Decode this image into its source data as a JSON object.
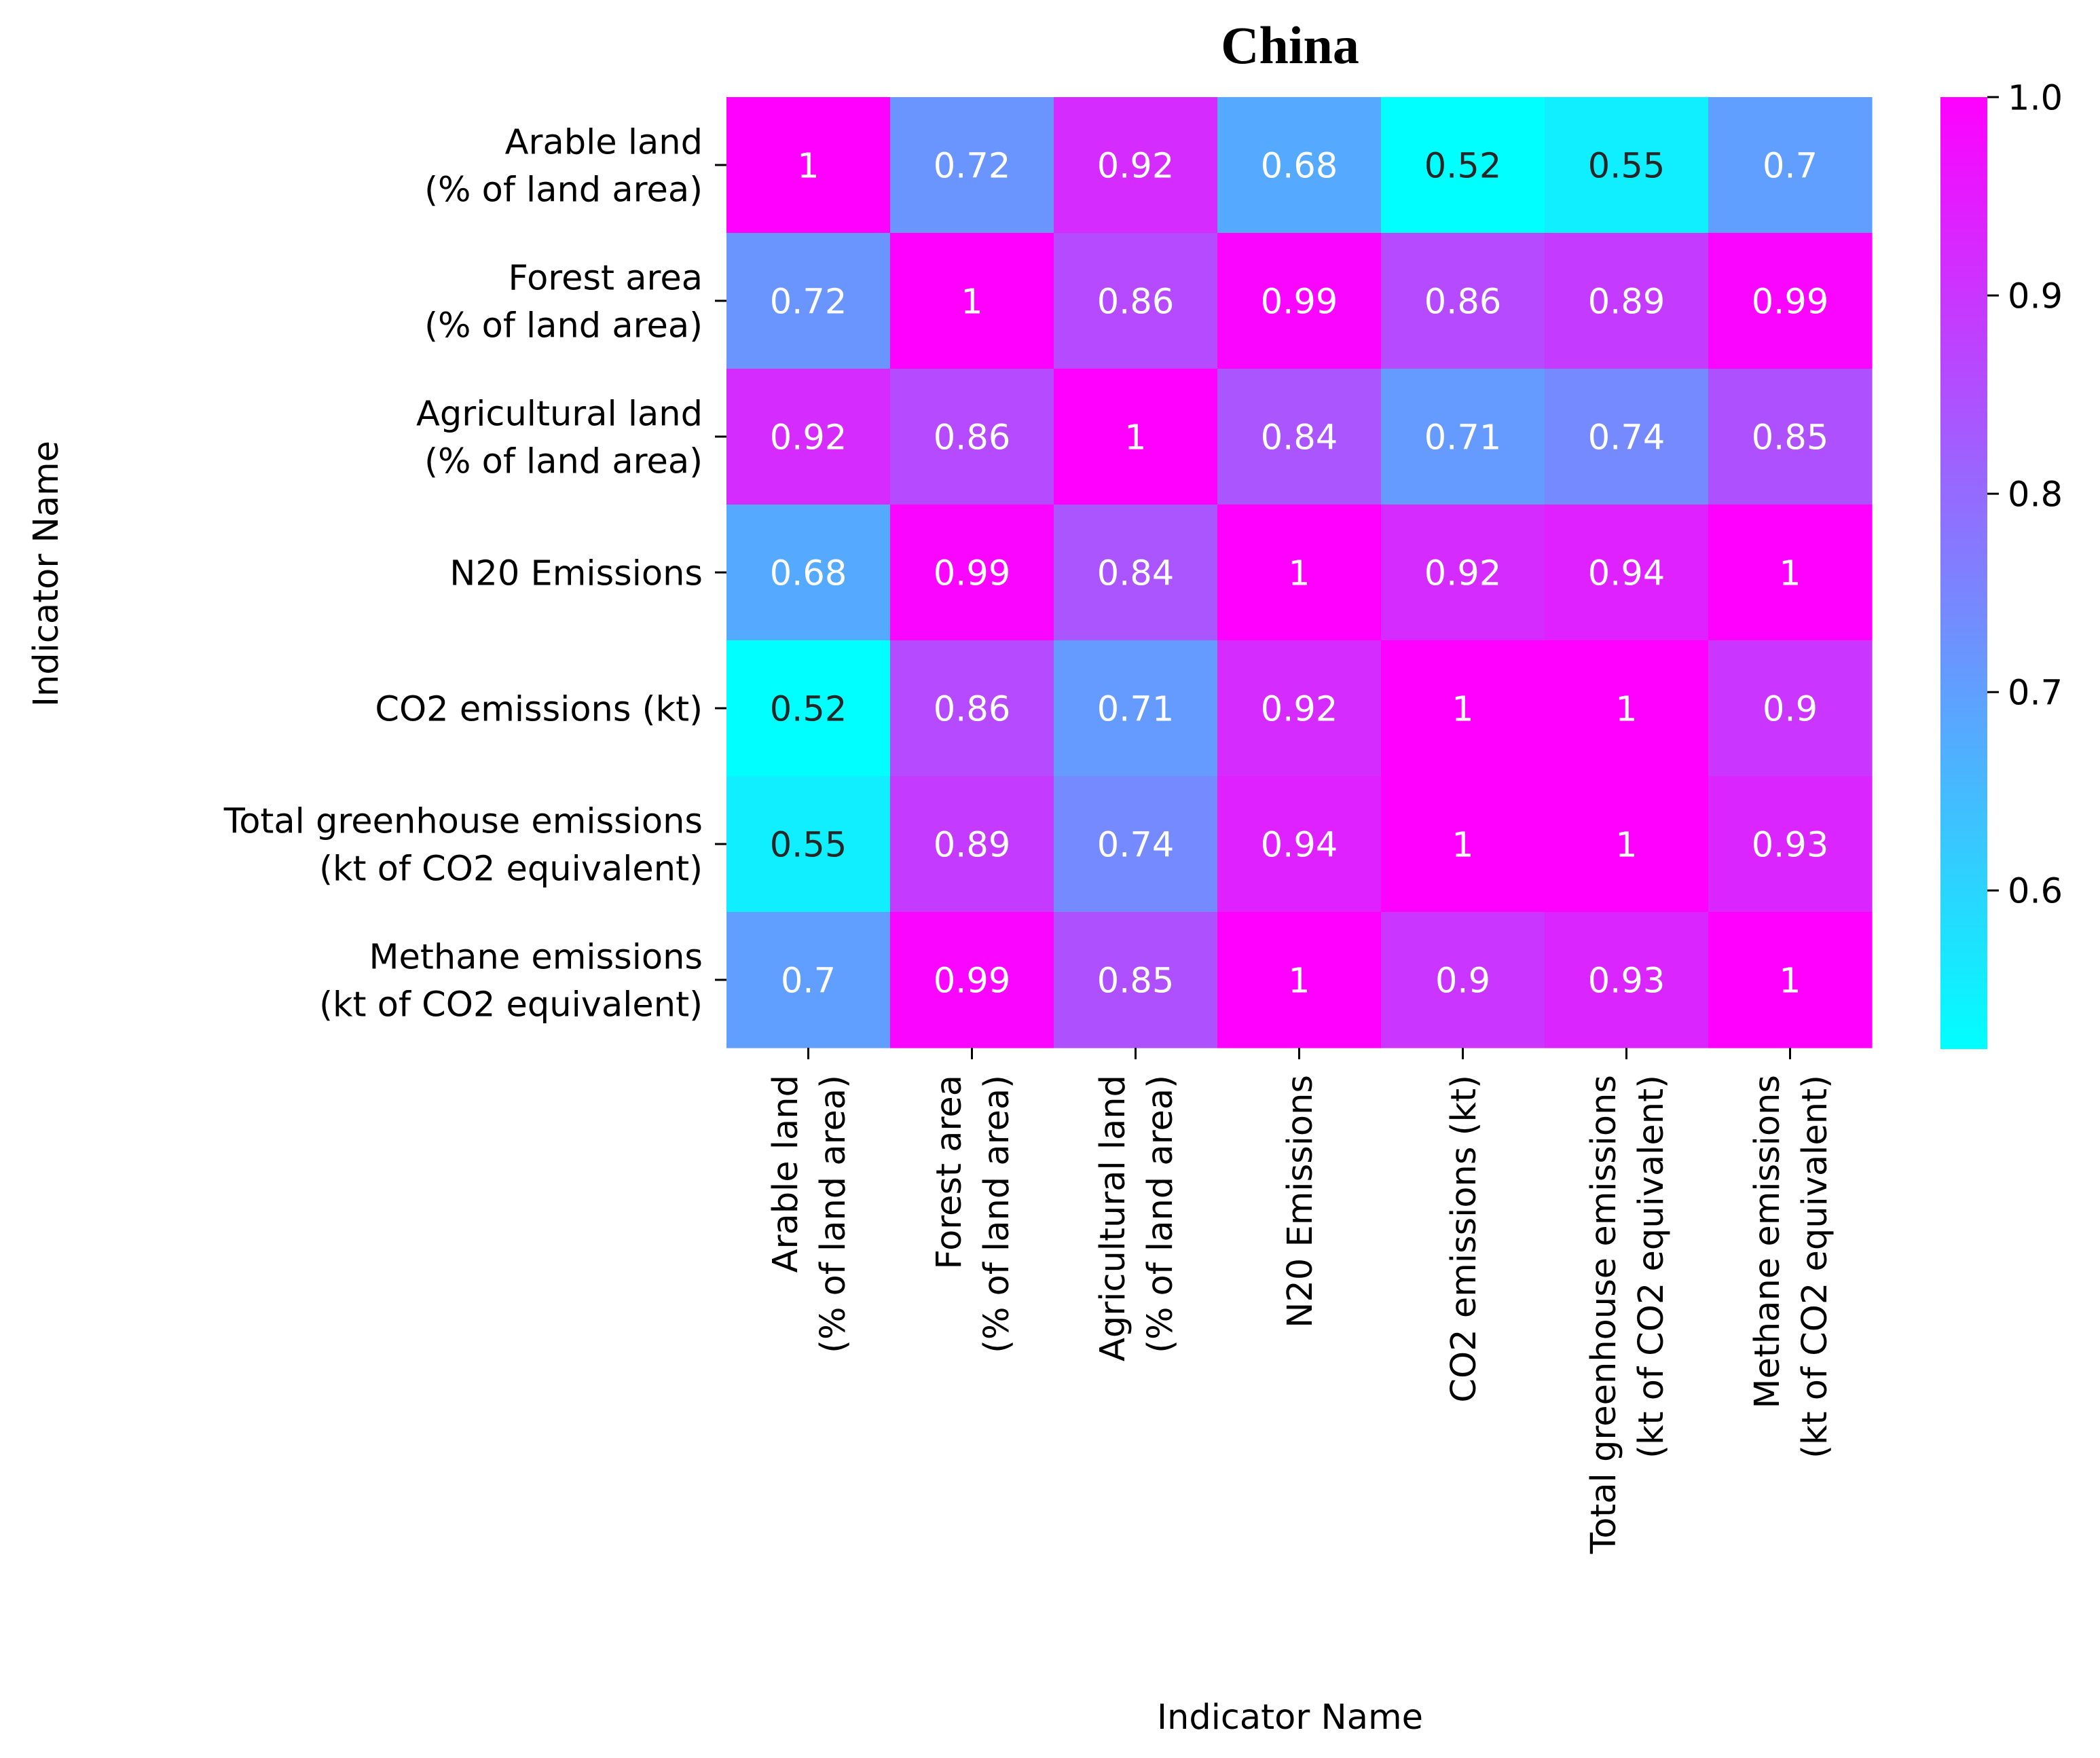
{
  "chart_data": {
    "type": "heatmap",
    "title": "China",
    "xlabel": "Indicator Name",
    "ylabel": "Indicator Name",
    "rows": [
      [
        "Arable land",
        "(% of land area)"
      ],
      [
        "Forest area",
        "(% of land area)"
      ],
      [
        "Agricultural land",
        "(% of land area)"
      ],
      [
        "N20 Emissions"
      ],
      [
        "CO2 emissions (kt)"
      ],
      [
        "Total greenhouse emissions",
        "(kt of CO2 equivalent)"
      ],
      [
        "Methane emissions",
        "(kt of CO2 equivalent)"
      ]
    ],
    "columns": [
      [
        "Arable land",
        "(% of land area)"
      ],
      [
        "Forest area",
        "(% of land area)"
      ],
      [
        "Agricultural land",
        "(% of land area)"
      ],
      [
        "N20 Emissions"
      ],
      [
        "CO2 emissions (kt)"
      ],
      [
        "Total greenhouse emissions",
        "(kt of CO2 equivalent)"
      ],
      [
        "Methane emissions",
        "(kt of CO2 equivalent)"
      ]
    ],
    "values": [
      [
        1,
        0.72,
        0.92,
        0.68,
        0.52,
        0.55,
        0.7
      ],
      [
        0.72,
        1,
        0.86,
        0.99,
        0.86,
        0.89,
        0.99
      ],
      [
        0.92,
        0.86,
        1,
        0.84,
        0.71,
        0.74,
        0.85
      ],
      [
        0.68,
        0.99,
        0.84,
        1,
        0.92,
        0.94,
        1
      ],
      [
        0.52,
        0.86,
        0.71,
        0.92,
        1,
        1,
        0.9
      ],
      [
        0.55,
        0.89,
        0.74,
        0.94,
        1,
        1,
        0.93
      ],
      [
        0.7,
        0.99,
        0.85,
        1,
        0.9,
        0.93,
        1
      ]
    ],
    "colormap": "cool",
    "colors": {
      "low": "#00ffff",
      "high": "#ff00ff",
      "text_light": "#ffffff",
      "text_dark": "#262626"
    },
    "vmin": 0.52,
    "vmax": 1.0,
    "colorbar_ticks": [
      "0.6",
      "0.7",
      "0.8",
      "0.9",
      "1.0"
    ]
  }
}
